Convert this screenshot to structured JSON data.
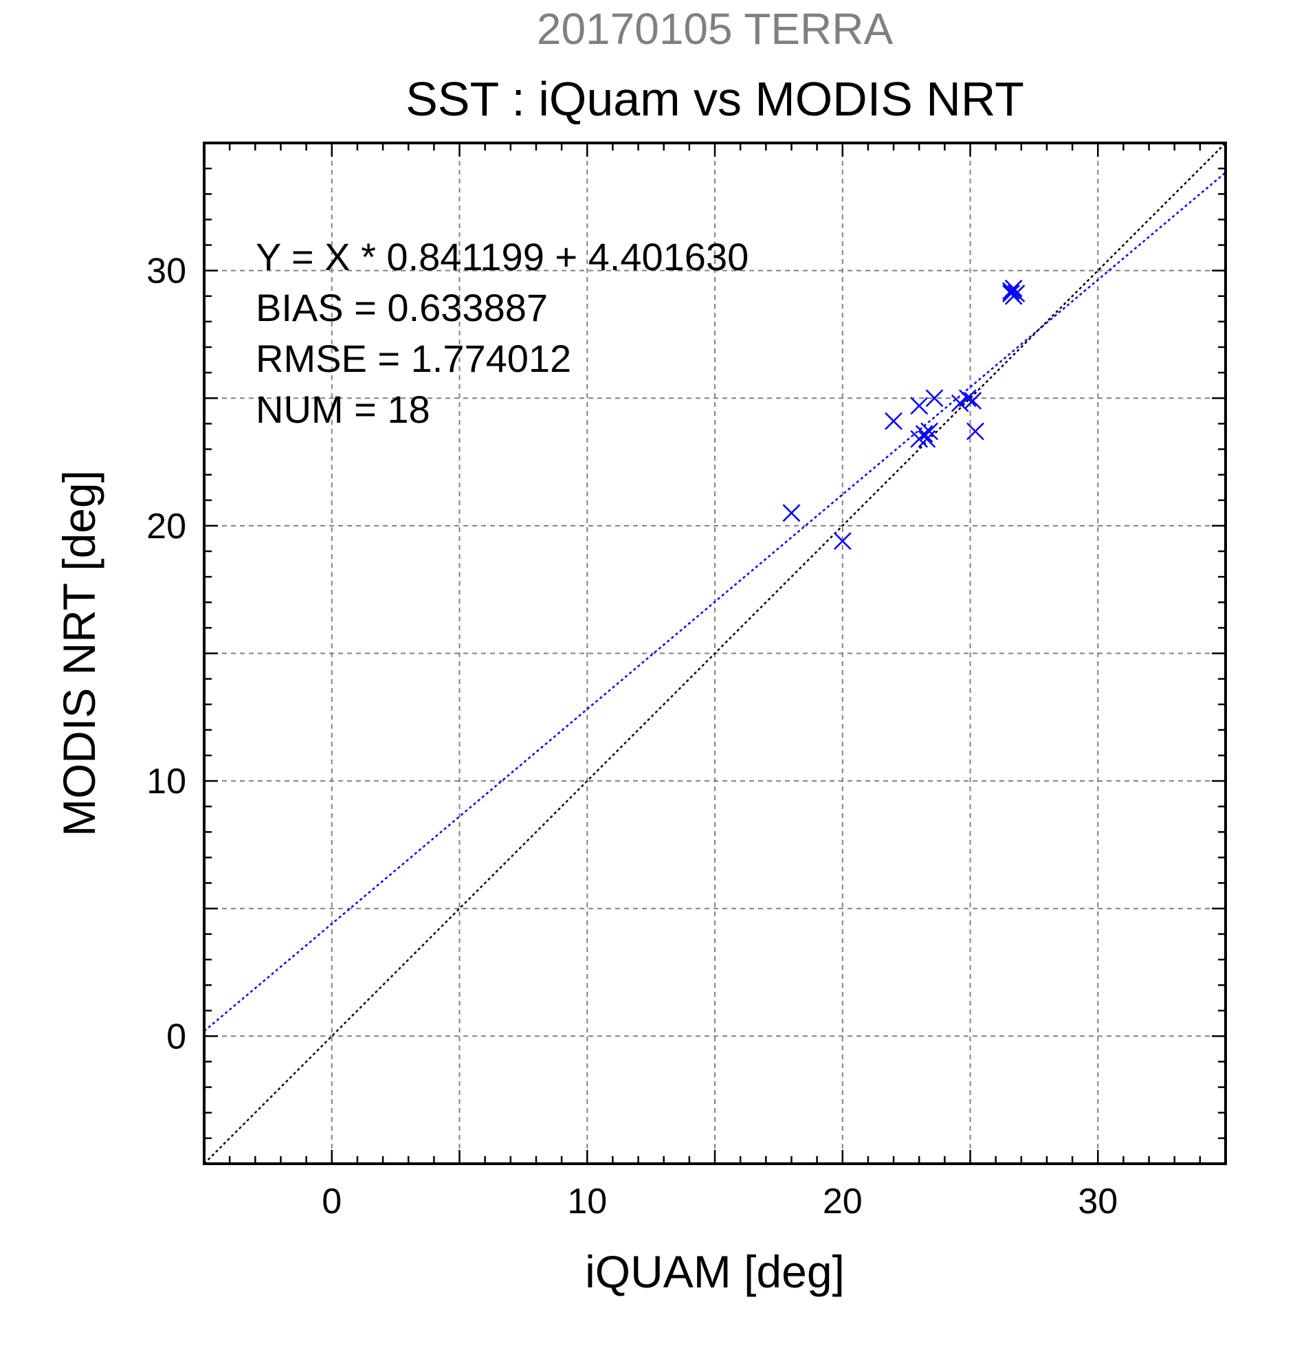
{
  "supertitle": "20170105 TERRA",
  "colors": {
    "supertitle": "#808080",
    "text": "#000000",
    "points": "#0000ff",
    "fit_line": "#0000ff",
    "identity_line": "#000000",
    "grid": "#808080",
    "frame": "#000000"
  },
  "stats": [
    "Y = X * 0.841199 + 4.401630",
    "BIAS = 0.633887",
    "RMSE = 1.774012",
    "NUM = 18"
  ],
  "chart_data": {
    "type": "scatter",
    "title": "SST : iQuam vs MODIS NRT",
    "xlabel": "iQUAM [deg]",
    "ylabel": "MODIS NRT [deg]",
    "xlim": [
      -5,
      35
    ],
    "ylim": [
      -5,
      35
    ],
    "xticks": [
      0,
      10,
      20,
      30
    ],
    "yticks": [
      0,
      10,
      20,
      30
    ],
    "grid": true,
    "marker": "x",
    "points": [
      {
        "x": 18.0,
        "y": 20.5
      },
      {
        "x": 20.0,
        "y": 19.4
      },
      {
        "x": 22.0,
        "y": 24.1
      },
      {
        "x": 23.0,
        "y": 24.7
      },
      {
        "x": 23.0,
        "y": 23.4
      },
      {
        "x": 23.2,
        "y": 23.6
      },
      {
        "x": 23.3,
        "y": 23.4
      },
      {
        "x": 23.4,
        "y": 23.7
      },
      {
        "x": 23.6,
        "y": 25.0
      },
      {
        "x": 24.6,
        "y": 24.8
      },
      {
        "x": 24.9,
        "y": 25.0
      },
      {
        "x": 25.1,
        "y": 24.9
      },
      {
        "x": 25.2,
        "y": 23.7
      },
      {
        "x": 26.6,
        "y": 29.2
      },
      {
        "x": 26.7,
        "y": 29.3
      },
      {
        "x": 26.7,
        "y": 29.0
      },
      {
        "x": 26.8,
        "y": 29.1
      },
      {
        "x": 26.6,
        "y": 29.1
      }
    ],
    "fit_line": {
      "slope": 0.841199,
      "intercept": 4.40163
    },
    "identity_line": {
      "slope": 1,
      "intercept": 0
    }
  }
}
